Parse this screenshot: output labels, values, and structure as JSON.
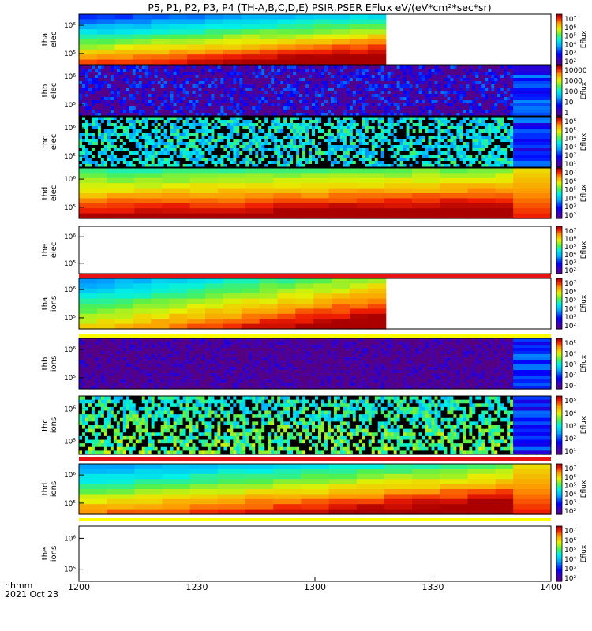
{
  "title": "P5, P1, P2, P3, P4 (TH-A,B,C,D,E) PSIR,PSER EFlux eV/(eV*cm²*sec*sr)",
  "time_axis": {
    "label_line1": "hhmm",
    "label_line2": "2021 Oct 23",
    "ticks": [
      "1200",
      "1230",
      "1300",
      "1330",
      "1400"
    ]
  },
  "colorbar_title": "Eflux",
  "chart_data": [
    {
      "type": "heatmap",
      "probe": "tha",
      "species": "elec",
      "ylabel_top": "tha",
      "ylabel_bottom": "elec",
      "yticks": [
        "10⁶",
        "10⁵"
      ],
      "cbar_ticks": [
        "10⁷",
        "10⁶",
        "10⁵",
        "10⁴",
        "10³",
        "10²"
      ],
      "cbar_log_range": [
        1.5,
        7.3
      ],
      "data_end": 0.65,
      "style": "smooth",
      "xrange": [
        "1200",
        "1400"
      ]
    },
    {
      "type": "heatmap",
      "probe": "thb",
      "species": "elec",
      "ylabel_top": "thb",
      "ylabel_bottom": "elec",
      "yticks": [
        "10⁶",
        "10⁵"
      ],
      "cbar_ticks": [
        "10000",
        "1000",
        "100",
        "10",
        "1"
      ],
      "cbar_log_range": [
        -0.2,
        4.6
      ],
      "data_end": 1.0,
      "style": "noise",
      "xrange": [
        "1200",
        "1400"
      ]
    },
    {
      "type": "heatmap",
      "probe": "thc",
      "species": "elec",
      "ylabel_top": "thc",
      "ylabel_bottom": "elec",
      "yticks": [
        "10⁶",
        "10⁵"
      ],
      "cbar_ticks": [
        "10⁶",
        "10⁵",
        "10⁴",
        "10³",
        "10²",
        "10¹"
      ],
      "cbar_log_range": [
        0.5,
        6.3
      ],
      "data_end": 1.0,
      "style": "stripes",
      "xrange": [
        "1200",
        "1400"
      ]
    },
    {
      "type": "heatmap",
      "probe": "thd",
      "species": "elec",
      "ylabel_top": "thd",
      "ylabel_bottom": "elec",
      "yticks": [
        "10⁶",
        "10⁵"
      ],
      "cbar_ticks": [
        "10⁷",
        "10⁶",
        "10⁵",
        "10⁴",
        "10³",
        "10²"
      ],
      "cbar_log_range": [
        1.5,
        7.3
      ],
      "data_end": 1.0,
      "style": "smooth_red",
      "xrange": [
        "1200",
        "1400"
      ]
    },
    {
      "type": "heatmap",
      "probe": "the",
      "species": "elec",
      "ylabel_top": "the",
      "ylabel_bottom": "elec",
      "yticks": [
        "10⁶",
        "10⁵"
      ],
      "cbar_ticks": [
        "10⁷",
        "10⁶",
        "10⁵",
        "10⁴",
        "10³",
        "10²"
      ],
      "cbar_log_range": [
        1.5,
        7.3
      ],
      "data_end": 0.0,
      "style": "empty",
      "xrange": [
        "1200",
        "1400"
      ]
    },
    {
      "type": "heatmap",
      "probe": "tha",
      "species": "ions",
      "ylabel_top": "tha",
      "ylabel_bottom": "ions",
      "yticks": [
        "10⁶",
        "10⁵"
      ],
      "cbar_ticks": [
        "10⁷",
        "10⁶",
        "10⁵",
        "10⁴",
        "10³",
        "10²"
      ],
      "cbar_log_range": [
        1.5,
        7.3
      ],
      "data_end": 0.65,
      "style": "ions",
      "xrange": [
        "1200",
        "1400"
      ]
    },
    {
      "type": "heatmap",
      "probe": "thb",
      "species": "ions",
      "ylabel_top": "thb",
      "ylabel_bottom": "ions",
      "yticks": [
        "10⁶",
        "10⁵"
      ],
      "cbar_ticks": [
        "10⁵",
        "10⁴",
        "10³",
        "10²",
        "10¹"
      ],
      "cbar_log_range": [
        0.5,
        5.4
      ],
      "data_end": 1.0,
      "style": "noise_purple",
      "xrange": [
        "1200",
        "1400"
      ]
    },
    {
      "type": "heatmap",
      "probe": "thc",
      "species": "ions",
      "ylabel_top": "thc",
      "ylabel_bottom": "ions",
      "yticks": [
        "10⁶",
        "10⁵"
      ],
      "cbar_ticks": [
        "10⁵",
        "10⁴",
        "10³",
        "10²",
        "10¹"
      ],
      "cbar_log_range": [
        0.5,
        5.4
      ],
      "data_end": 1.0,
      "style": "stripes_ions",
      "xrange": [
        "1200",
        "1400"
      ]
    },
    {
      "type": "heatmap",
      "probe": "thd",
      "species": "ions",
      "ylabel_top": "thd",
      "ylabel_bottom": "ions",
      "yticks": [
        "10⁶",
        "10⁵"
      ],
      "cbar_ticks": [
        "10⁷",
        "10⁶",
        "10⁵",
        "10⁴",
        "10³",
        "10²"
      ],
      "cbar_log_range": [
        1.5,
        7.3
      ],
      "data_end": 1.0,
      "style": "smooth_ions",
      "xrange": [
        "1200",
        "1400"
      ]
    },
    {
      "type": "heatmap",
      "probe": "the",
      "species": "ions",
      "ylabel_top": "the",
      "ylabel_bottom": "ions",
      "yticks": [
        "10⁶",
        "10⁵"
      ],
      "cbar_ticks": [
        "10⁷",
        "10⁶",
        "10⁵",
        "10⁴",
        "10³",
        "10²"
      ],
      "cbar_log_range": [
        1.5,
        7.3
      ],
      "data_end": 0.0,
      "style": "empty",
      "xrange": [
        "1200",
        "1400"
      ]
    }
  ]
}
